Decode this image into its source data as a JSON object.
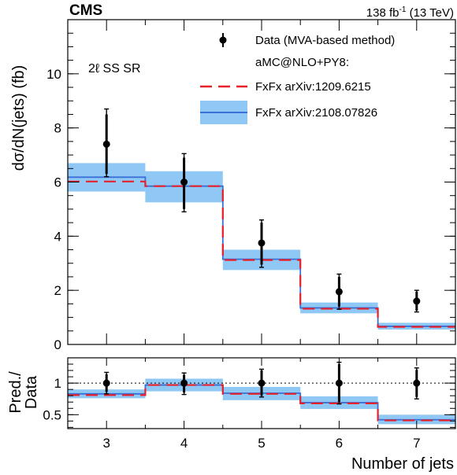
{
  "header": {
    "experiment": "CMS",
    "lumi_prefix": "138 fb",
    "lumi_exp": "-1",
    "lumi_suffix": " (13 TeV)"
  },
  "region_label": "2ℓ SS SR",
  "legend": {
    "data": "Data (MVA-based method)",
    "generator": "aMC@NLO+PY8:",
    "pred_a": "FxFx arXiv:1209.6215",
    "pred_b": "FxFx arXiv:2108.07826"
  },
  "colors": {
    "data": "#000000",
    "pred_a": "#e8202a",
    "pred_b": "#3a6fd8",
    "pred_b_band": "#8fc8f5",
    "axis": "#000000"
  },
  "chart_data": [
    {
      "type": "bar",
      "role": "main",
      "categories": [
        "3",
        "4",
        "5",
        "6",
        "7"
      ],
      "x_edges": [
        2.5,
        3.5,
        4.5,
        5.5,
        6.5,
        7.5
      ],
      "xlim": [
        2.5,
        7.5
      ],
      "ylim": [
        0,
        12
      ],
      "yticks": [
        0,
        2,
        4,
        6,
        8,
        10
      ],
      "ylabel": "dσ/dN(jets) (fb)",
      "series": [
        {
          "name": "Data (MVA-based method)",
          "kind": "points",
          "x": [
            3,
            4,
            5,
            6,
            7
          ],
          "values": [
            7.4,
            6.0,
            3.75,
            1.95,
            1.6
          ],
          "err_total_up": [
            8.7,
            7.05,
            4.6,
            2.6,
            2.0
          ],
          "err_total_down": [
            6.2,
            4.9,
            2.85,
            1.3,
            1.2
          ],
          "err_stat_up": [
            8.5,
            6.9,
            4.5,
            2.5,
            1.95
          ],
          "err_stat_down": [
            6.3,
            5.0,
            2.95,
            1.4,
            1.25
          ]
        },
        {
          "name": "FxFx arXiv:1209.6215",
          "kind": "step",
          "values": [
            6.02,
            5.85,
            3.12,
            1.32,
            0.65
          ]
        },
        {
          "name": "FxFx arXiv:2108.07826",
          "kind": "step_band",
          "values": [
            6.18,
            5.85,
            3.15,
            1.35,
            0.67
          ],
          "band_low": [
            5.65,
            5.25,
            2.75,
            1.15,
            0.55
          ],
          "band_high": [
            6.7,
            6.4,
            3.5,
            1.55,
            0.8
          ]
        }
      ]
    },
    {
      "type": "bar",
      "role": "ratio",
      "categories": [
        "3",
        "4",
        "5",
        "6",
        "7"
      ],
      "x_edges": [
        2.5,
        3.5,
        4.5,
        5.5,
        6.5,
        7.5
      ],
      "xlim": [
        2.5,
        7.5
      ],
      "ylim": [
        0.28,
        1.4
      ],
      "yticks": [
        0.5,
        1
      ],
      "ytick_labels": [
        "0.5",
        "1"
      ],
      "reference_line": 1,
      "ylabel_line1": "Pred./",
      "ylabel_line2": "Data",
      "xlabel": "Number of jets",
      "series": [
        {
          "name": "Data",
          "kind": "points",
          "x": [
            3,
            4,
            5,
            6,
            7
          ],
          "values": [
            1.0,
            1.0,
            1.0,
            1.0,
            1.0
          ],
          "err_total_up": [
            1.17,
            1.16,
            1.22,
            1.33,
            1.24
          ],
          "err_total_down": [
            0.83,
            0.82,
            0.78,
            0.67,
            0.75
          ],
          "err_stat_up": [
            1.14,
            1.13,
            1.2,
            1.3,
            1.21
          ],
          "err_stat_down": [
            0.86,
            0.85,
            0.8,
            0.7,
            0.78
          ]
        },
        {
          "name": "FxFx arXiv:1209.6215",
          "kind": "step",
          "values": [
            0.81,
            0.97,
            0.83,
            0.68,
            0.41
          ]
        },
        {
          "name": "FxFx arXiv:2108.07826",
          "kind": "step_band",
          "values": [
            0.83,
            0.97,
            0.84,
            0.69,
            0.42
          ],
          "band_low": [
            0.76,
            0.87,
            0.73,
            0.59,
            0.35
          ],
          "band_high": [
            0.9,
            1.07,
            0.94,
            0.79,
            0.5
          ]
        }
      ]
    }
  ]
}
